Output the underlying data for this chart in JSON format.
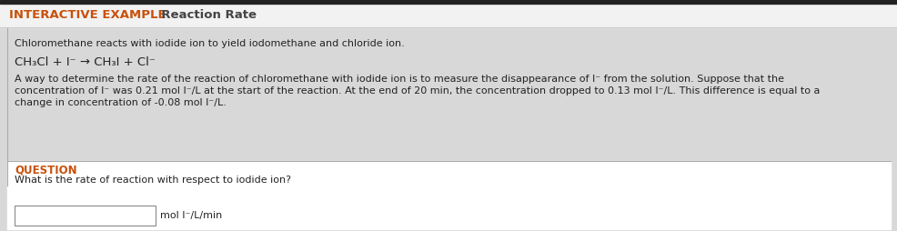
{
  "header_orange": "INTERACTIVE EXAMPLE",
  "header_black": "  Reaction Rate",
  "top_bar_color": "#222222",
  "header_bg": "#f0f0f0",
  "body_bg": "#d8d8d8",
  "question_bg": "#ffffff",
  "question_border_color": "#aaaaaa",
  "orange_color": "#c8500a",
  "dark_text_color": "#222222",
  "gray_text_color": "#444444",
  "line1": "Chloromethane reacts with iodide ion to yield iodomethane and chloride ion.",
  "equation": "CH₃Cl + I⁻ → CH₃I + Cl⁻",
  "para_line1": "A way to determine the rate of the reaction of chloromethane with iodide ion is to measure the disappearance of I⁻ from the solution. Suppose that the",
  "para_line2": "concentration of I⁻ was 0.21 mol I⁻/L at the start of the reaction. At the end of 20 min, the concentration dropped to 0.13 mol I⁻/L. This difference is equal to a",
  "para_line3": "change in concentration of -0.08 mol I⁻/L.",
  "question_label": "QUESTION",
  "question_text": "What is the rate of reaction with respect to iodide ion?",
  "unit_text": "mol I⁻/L/min",
  "font_size_header": 9.5,
  "font_size_body": 8.0,
  "font_size_equation": 9.5,
  "font_size_question_label": 8.5
}
